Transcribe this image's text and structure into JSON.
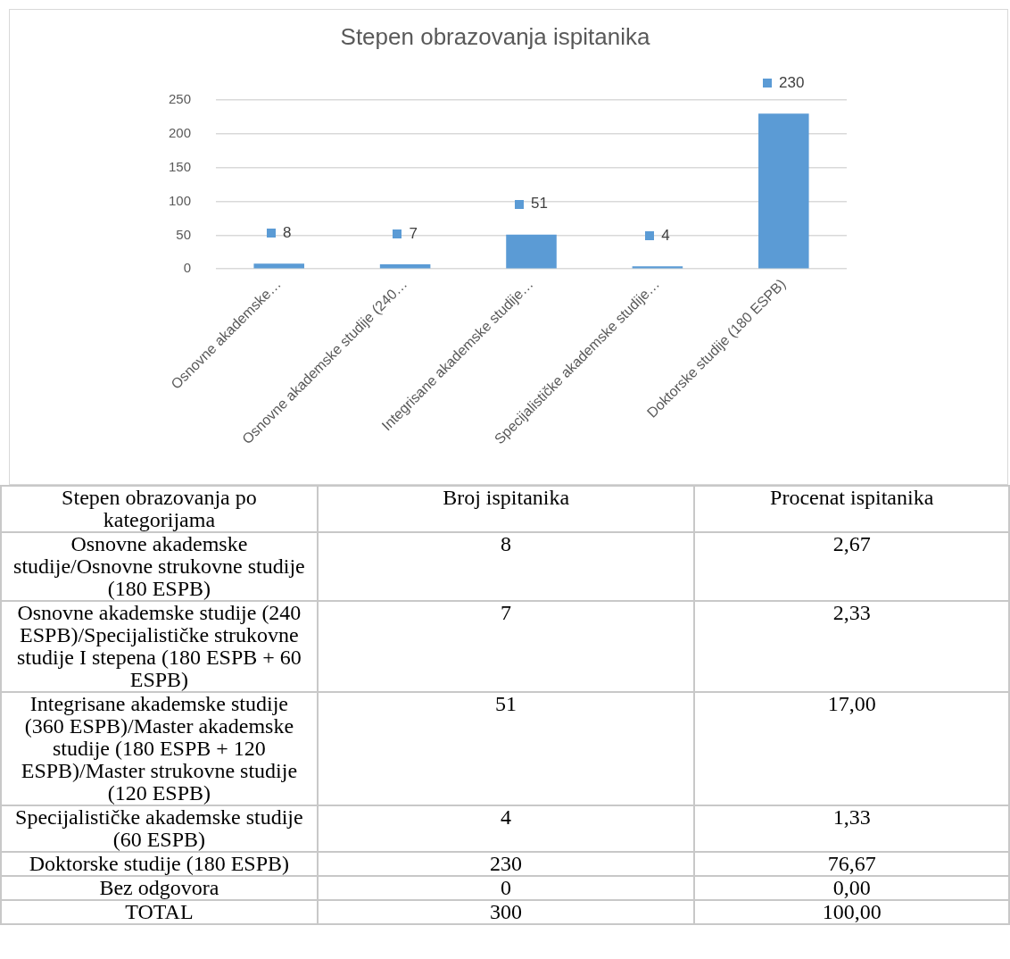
{
  "chart_data": [
    {
      "type": "bar",
      "title": "Stepen obrazovanja ispitanika",
      "categories": [
        "Osnovne akademske…",
        "Osnovne akademske studije (240…",
        "Integrisane akademske studije…",
        "Specijalističke akademske studije…",
        "Doktorske studije (180 ESPB)"
      ],
      "values": [
        8,
        7,
        51,
        4,
        230
      ],
      "color": "#5b9bd5",
      "ylim": [
        0,
        250
      ],
      "yticks": [
        0,
        50,
        100,
        150,
        200,
        250
      ],
      "grid": "y",
      "data_labels": true
    },
    {
      "type": "other",
      "categories": [
        "Stepen obrazovanja po kategorijama",
        "Broj ispitanika",
        "Procenat ispitanika"
      ],
      "annotations": [
        "Osnovne akademske studije/Osnovne strukovne studije (180 ESPB)",
        "8",
        "2,67",
        "Osnovne akademske studije (240 ESPB)/Specijalističke strukovne studije I stepena (180 ESPB + 60 ESPB)",
        "7",
        "2,33",
        "Integrisane akademske studije (360 ESPB)/Master akademske studije (180 ESPB + 120 ESPB)/Master strukovne studije (120 ESPB)",
        "51",
        "17,00",
        "Specijalističke akademske studije (60 ESPB)",
        "4",
        "1,33",
        "Doktorske studije (180 ESPB)",
        "230",
        "76,67",
        "Bez odgovora",
        "0",
        "0,00",
        "TOTAL",
        "300",
        "100,00"
      ]
    }
  ]
}
